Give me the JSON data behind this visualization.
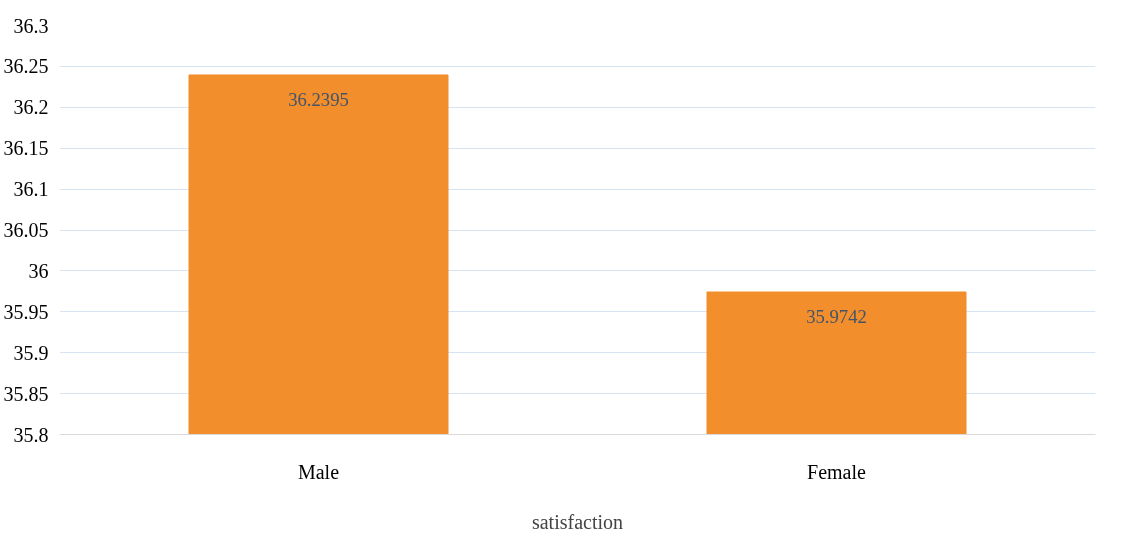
{
  "chart_data": {
    "type": "bar",
    "xlabel": "satisfaction",
    "categories": [
      "Male",
      "Female"
    ],
    "values": [
      36.2395,
      35.9742
    ],
    "color": "#f28e2b",
    "ylim": [
      35.8,
      36.3
    ],
    "yticks": [
      35.8,
      35.85,
      35.9,
      35.95,
      36,
      36.05,
      36.1,
      36.15,
      36.2,
      36.25,
      36.3
    ],
    "grid": "y",
    "data_labels": true
  }
}
